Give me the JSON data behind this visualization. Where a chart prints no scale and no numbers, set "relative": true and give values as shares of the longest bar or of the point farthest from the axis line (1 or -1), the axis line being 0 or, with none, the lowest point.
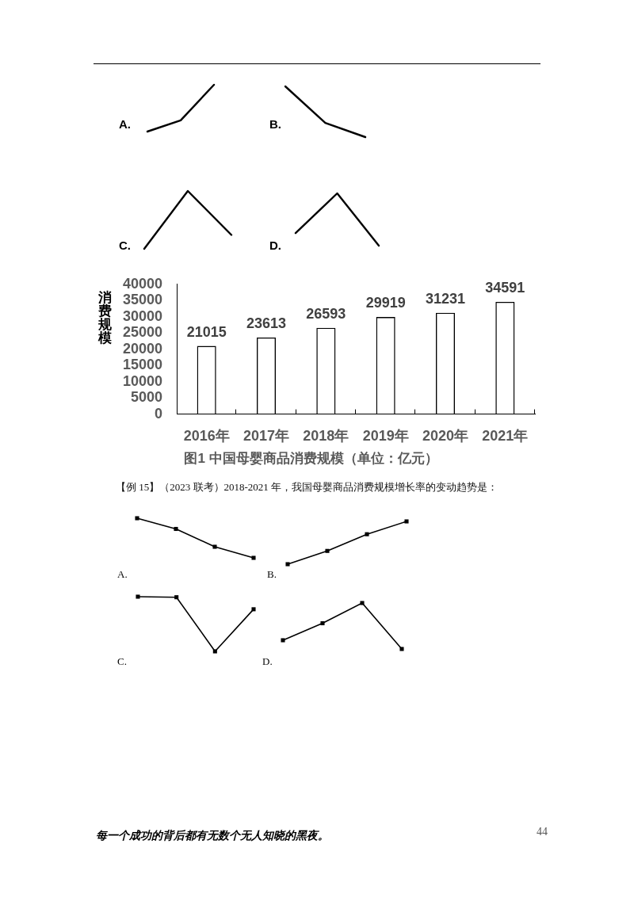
{
  "chart_data": [
    {
      "type": "line",
      "title": "A.",
      "categories": [
        null,
        null,
        null
      ],
      "relative": true,
      "series": [
        {
          "color": "#000000",
          "values": [
            0,
            0.24,
            1
          ]
        }
      ]
    },
    {
      "type": "line",
      "title": "B.",
      "categories": [
        null,
        null,
        null
      ],
      "relative": true,
      "series": [
        {
          "color": "#000000",
          "values": [
            1,
            0.28,
            0
          ]
        }
      ]
    },
    {
      "type": "line",
      "title": "C.",
      "categories": [
        null,
        null,
        null
      ],
      "relative": true,
      "series": [
        {
          "color": "#000000",
          "values": [
            0,
            1,
            0.24
          ]
        }
      ]
    },
    {
      "type": "line",
      "title": "D.",
      "categories": [
        null,
        null,
        null
      ],
      "relative": true,
      "series": [
        {
          "color": "#000000",
          "values": [
            0.24,
            1,
            0
          ]
        }
      ]
    },
    {
      "type": "bar",
      "title": "图1 中国母婴商品消费规模（单位：亿元）",
      "ylabel": "消费规模",
      "categories": [
        "2016年",
        "2017年",
        "2018年",
        "2019年",
        "2020年",
        "2021年"
      ],
      "values": [
        21015,
        23613,
        26593,
        29919,
        31231,
        34591
      ],
      "color": "#000000",
      "ylim": [
        0,
        40000
      ],
      "yticks": [
        0,
        5000,
        10000,
        15000,
        20000,
        25000,
        30000,
        35000,
        40000
      ],
      "data_labels": true
    },
    {
      "type": "line",
      "title": "A.",
      "annotations": [
        "【例 15】（2023 联考）2018-2021 年，我国母婴商品消费规模增长率的变动趋势是："
      ],
      "categories": [
        null,
        null,
        null,
        null
      ],
      "relative": true,
      "marker": "square",
      "series": [
        {
          "color": "#000000",
          "values": [
            1,
            0.73,
            0.28,
            0
          ]
        }
      ]
    },
    {
      "type": "line",
      "title": "B.",
      "categories": [
        null,
        null,
        null,
        null
      ],
      "relative": true,
      "marker": "square",
      "series": [
        {
          "color": "#000000",
          "values": [
            0,
            0.31,
            0.7,
            1
          ]
        }
      ]
    },
    {
      "type": "line",
      "title": "C.",
      "categories": [
        null,
        null,
        null,
        null
      ],
      "relative": true,
      "marker": "square",
      "series": [
        {
          "color": "#000000",
          "values": [
            1,
            0.99,
            0,
            0.77
          ]
        }
      ]
    },
    {
      "type": "line",
      "title": "D.",
      "annotations": [
        "每一个成功的背后都有无数个无人知晓的黑夜。",
        "44"
      ],
      "categories": [
        null,
        null,
        null,
        null
      ],
      "relative": true,
      "marker": "square",
      "series": [
        {
          "color": "#000000",
          "values": [
            0.19,
            0.56,
            1,
            0
          ]
        }
      ]
    }
  ]
}
